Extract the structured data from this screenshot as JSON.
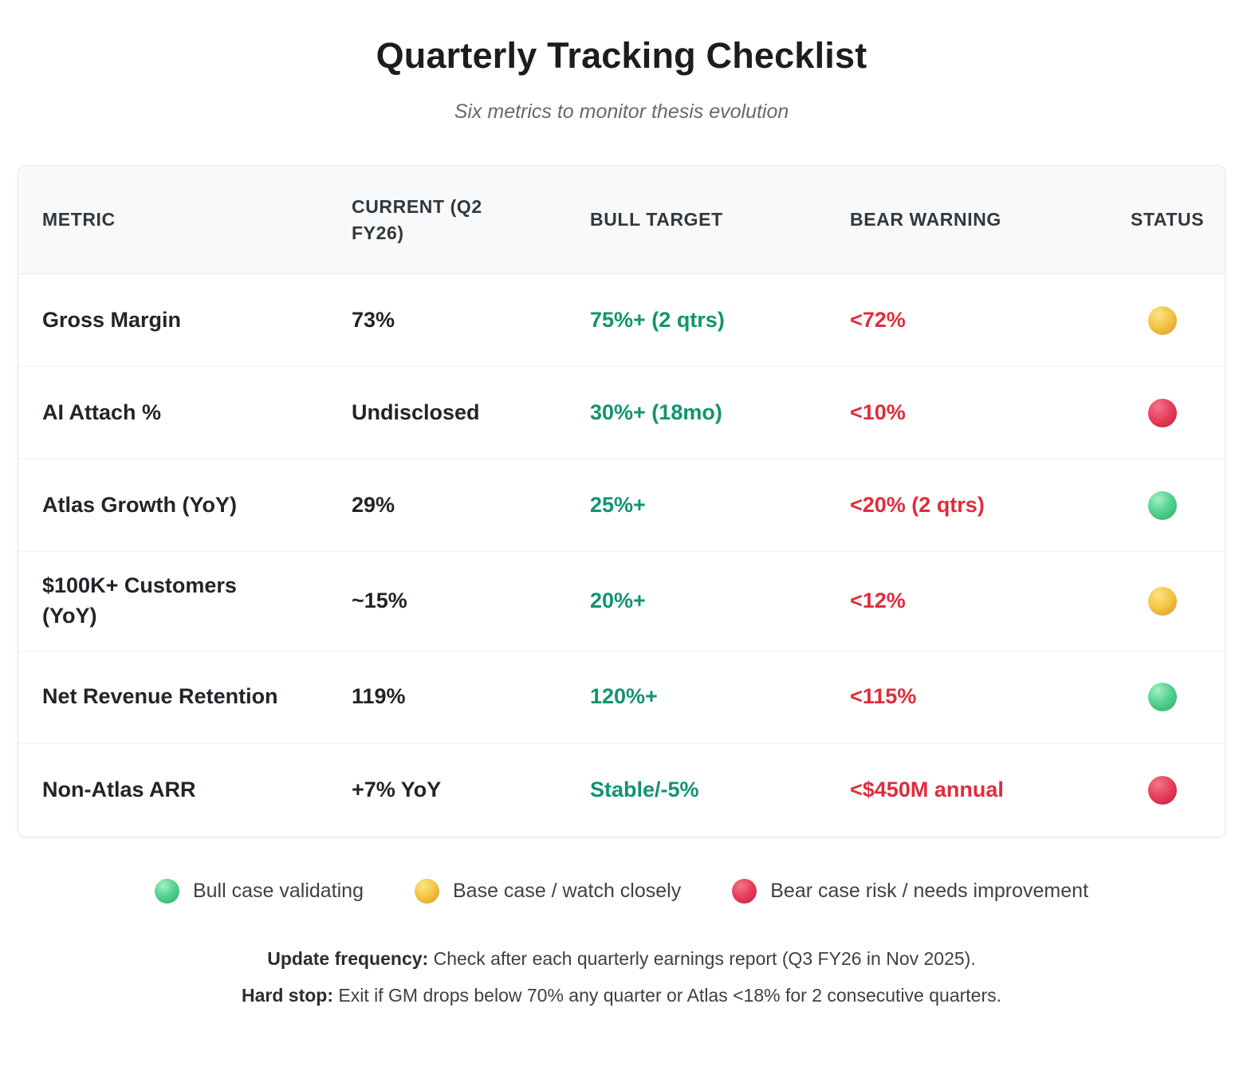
{
  "page": {
    "title": "Quarterly Tracking Checklist",
    "subtitle": "Six metrics to monitor thesis evolution"
  },
  "table": {
    "columns": [
      "METRIC",
      "CURRENT (Q2 FY26)",
      "BULL TARGET",
      "BEAR WARNING",
      "STATUS"
    ],
    "rows": [
      {
        "metric": "Gross Margin",
        "current": "73%",
        "bull_target": "75%+ (2 qtrs)",
        "bear_warning": "<72%",
        "status": "yellow"
      },
      {
        "metric": "AI Attach %",
        "current": "Undisclosed",
        "bull_target": "30%+ (18mo)",
        "bear_warning": "<10%",
        "status": "red"
      },
      {
        "metric": "Atlas Growth (YoY)",
        "current": "29%",
        "bull_target": "25%+",
        "bear_warning": "<20% (2 qtrs)",
        "status": "green"
      },
      {
        "metric": "$100K+ Customers (YoY)",
        "current": "~15%",
        "bull_target": "20%+",
        "bear_warning": "<12%",
        "status": "yellow"
      },
      {
        "metric": "Net Revenue Retention",
        "current": "119%",
        "bull_target": "120%+",
        "bear_warning": "<115%",
        "status": "green"
      },
      {
        "metric": "Non-Atlas ARR",
        "current": "+7% YoY",
        "bull_target": "Stable/-5%",
        "bear_warning": "<$450M annual",
        "status": "red"
      }
    ]
  },
  "legend": [
    {
      "color": "green",
      "label": "Bull case validating"
    },
    {
      "color": "yellow",
      "label": "Base case / watch closely"
    },
    {
      "color": "red",
      "label": "Bear case risk / needs improvement"
    }
  ],
  "footer": {
    "line1_label": "Update frequency:",
    "line1_text": " Check after each quarterly earnings report (Q3 FY26 in Nov 2025).",
    "line2_label": "Hard stop:",
    "line2_text": " Exit if GM drops below 70% any quarter or Atlas <18% for 2 consecutive quarters."
  },
  "colors": {
    "bull_target_green": "#12946f",
    "bear_warning_red": "#e22b3c",
    "status_green": "#52d190",
    "status_yellow": "#f3c342",
    "status_red": "#e63d58",
    "header_bg": "#f8f9fa"
  }
}
